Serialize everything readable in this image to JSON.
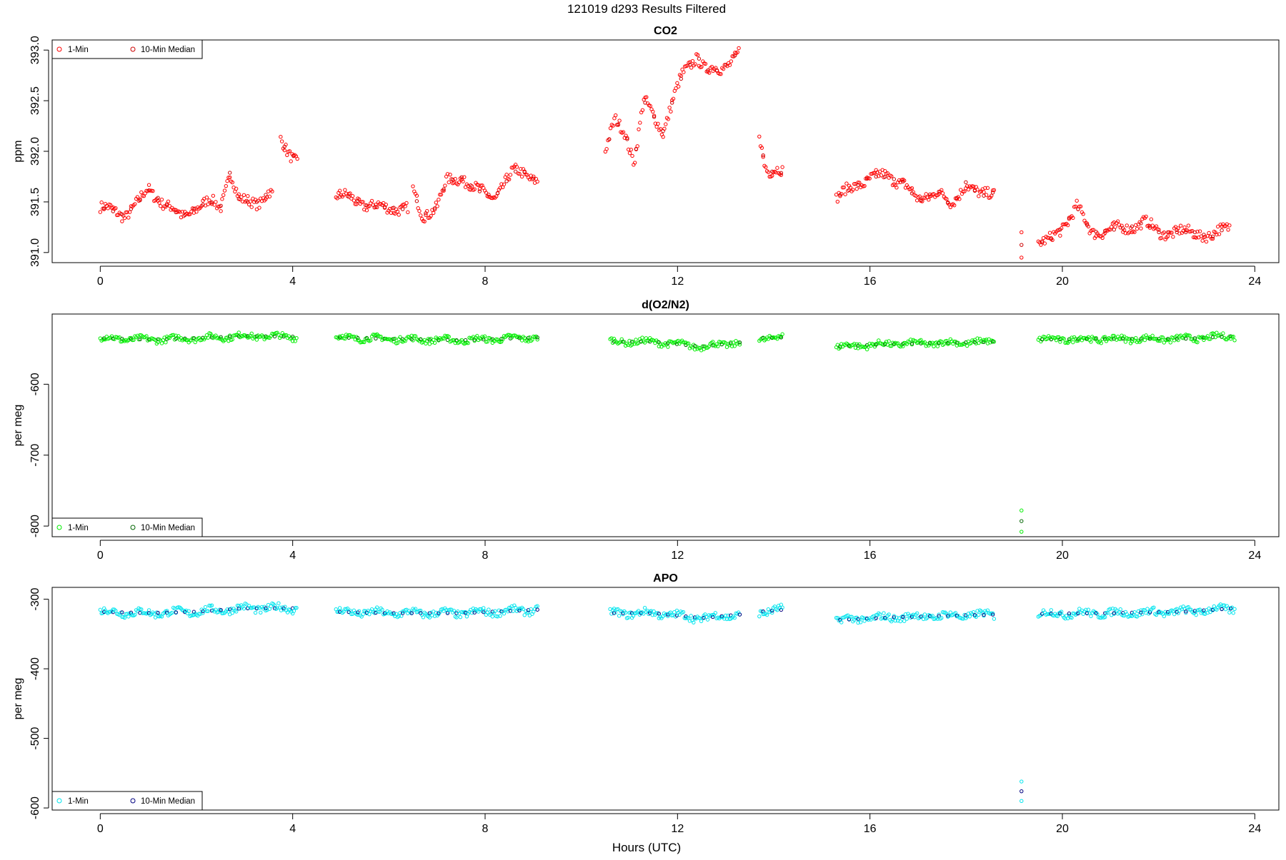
{
  "page": {
    "title": "121019   d293   Results Filtered",
    "xlabel": "Hours (UTC)"
  },
  "colors": {
    "co2_1min": "#ff0000",
    "co2_median": "#cc0000",
    "o2_1min": "#00ee00",
    "o2_median": "#006400",
    "apo_1min": "#00e5ee",
    "apo_median": "#000080",
    "axis": "#000000",
    "background": "#ffffff"
  },
  "chart_data": [
    {
      "id": "co2",
      "type": "scatter",
      "title": "CO2",
      "ylabel": "ppm",
      "xlim": [
        -1,
        24.5
      ],
      "ylim": [
        390.9,
        393.1
      ],
      "xticks": [
        0,
        4,
        8,
        12,
        16,
        20,
        24
      ],
      "yticks": [
        391.0,
        391.5,
        392.0,
        392.5,
        393.0
      ],
      "ytick_labels": [
        "391.0",
        "391.5",
        "392.0",
        "392.5",
        "393.0"
      ],
      "legend": {
        "position": "top-left",
        "entries": [
          "1-Min",
          "10-Min Median"
        ]
      },
      "segments": [
        {
          "t": [
            0.0,
            0.5,
            0.8,
            1.0,
            1.3,
            1.7,
            2.0,
            2.3,
            2.5,
            2.7,
            2.9,
            3.3,
            3.5,
            3.6
          ],
          "v": [
            391.45,
            391.37,
            391.5,
            391.62,
            391.5,
            391.35,
            391.45,
            391.5,
            391.45,
            391.8,
            391.5,
            391.5,
            391.6,
            391.55
          ]
        },
        {
          "t": [
            3.75,
            3.9,
            4.1
          ],
          "v": [
            392.1,
            392.0,
            391.92
          ]
        },
        {
          "t": [
            4.9,
            5.2,
            5.6,
            6.0,
            6.4
          ],
          "v": [
            391.55,
            391.55,
            391.45,
            391.45,
            391.42
          ]
        },
        {
          "t": [
            6.5,
            6.7,
            7.0,
            7.2,
            7.5,
            7.8,
            8.2,
            8.6,
            8.8,
            9.1
          ],
          "v": [
            391.6,
            391.37,
            391.45,
            391.7,
            391.75,
            391.62,
            391.55,
            391.8,
            391.8,
            391.7
          ]
        },
        {
          "t": [
            10.5,
            10.7,
            10.9,
            11.1,
            11.3,
            11.5,
            11.7,
            11.9,
            12.1,
            12.4,
            12.6,
            12.9,
            13.1,
            13.3
          ],
          "v": [
            392.0,
            392.3,
            392.2,
            391.9,
            392.5,
            392.35,
            392.2,
            392.5,
            392.75,
            392.95,
            392.8,
            392.8,
            392.9,
            393.0
          ]
        },
        {
          "t": [
            13.7,
            13.8,
            13.9,
            14.05,
            14.2
          ],
          "v": [
            392.2,
            391.9,
            391.8,
            391.8,
            391.78
          ]
        },
        {
          "t": [
            15.3,
            15.7,
            16.0,
            16.3,
            16.7,
            17.0,
            17.4,
            17.7,
            18.0,
            18.3,
            18.6
          ],
          "v": [
            391.55,
            391.65,
            391.75,
            391.75,
            391.7,
            391.5,
            391.62,
            391.45,
            391.7,
            391.55,
            391.6
          ]
        },
        {
          "t": [
            19.15,
            19.15
          ],
          "v": [
            390.95,
            391.2
          ]
        },
        {
          "t": [
            19.5,
            19.7,
            20.0,
            20.3,
            20.6,
            21.0,
            21.4,
            21.7,
            22.0,
            22.4,
            22.8,
            23.1,
            23.5
          ],
          "v": [
            391.1,
            391.1,
            391.25,
            391.45,
            391.2,
            391.22,
            391.25,
            391.3,
            391.2,
            391.2,
            391.2,
            391.15,
            391.28
          ]
        }
      ],
      "noise": 0.05
    },
    {
      "id": "o2",
      "type": "scatter",
      "title": "d(O2/N2)",
      "ylabel": "per meg",
      "xlim": [
        -1,
        24.5
      ],
      "ylim": [
        -815,
        -501
      ],
      "xticks": [
        0,
        4,
        8,
        12,
        16,
        20,
        24
      ],
      "yticks": [
        -800,
        -700,
        -600
      ],
      "ytick_labels": [
        "-800",
        "-700",
        "-600"
      ],
      "legend": {
        "position": "bottom-left",
        "entries": [
          "1-Min",
          "10-Min Median"
        ]
      },
      "segments": [
        {
          "t": [
            0.0,
            1.0,
            2.0,
            3.0,
            4.1
          ],
          "v": [
            -535,
            -537,
            -535,
            -532,
            -533
          ]
        },
        {
          "t": [
            4.9,
            6.0,
            7.5,
            9.1
          ],
          "v": [
            -534,
            -536,
            -538,
            -534
          ]
        },
        {
          "t": [
            10.6,
            11.5,
            12.5,
            13.3
          ],
          "v": [
            -540,
            -540,
            -547,
            -541
          ]
        },
        {
          "t": [
            13.7,
            14.2
          ],
          "v": [
            -535,
            -534
          ]
        },
        {
          "t": [
            15.3,
            16.5,
            17.5,
            18.6
          ],
          "v": [
            -547,
            -543,
            -542,
            -540
          ]
        },
        {
          "t": [
            19.15,
            19.15
          ],
          "v": [
            -808,
            -778
          ]
        },
        {
          "t": [
            19.5,
            21.0,
            22.5,
            23.6
          ],
          "v": [
            -537,
            -536,
            -536,
            -532
          ]
        }
      ],
      "noise": 4
    },
    {
      "id": "apo",
      "type": "scatter",
      "title": "APO",
      "ylabel": "per meg",
      "xlim": [
        -1,
        24.5
      ],
      "ylim": [
        -603,
        -283
      ],
      "xticks": [
        0,
        4,
        8,
        12,
        16,
        20,
        24
      ],
      "yticks": [
        -600,
        -500,
        -400,
        -300
      ],
      "ytick_labels": [
        "-600",
        "-500",
        "-400",
        "-300"
      ],
      "legend": {
        "position": "bottom-left",
        "entries": [
          "1-Min",
          "10-Min Median"
        ]
      },
      "segments": [
        {
          "t": [
            0.0,
            1.0,
            2.0,
            3.0,
            4.1
          ],
          "v": [
            -318,
            -320,
            -318,
            -313,
            -313
          ]
        },
        {
          "t": [
            4.9,
            6.0,
            7.5,
            9.1
          ],
          "v": [
            -318,
            -320,
            -320,
            -315
          ]
        },
        {
          "t": [
            10.6,
            11.5,
            12.5,
            13.3
          ],
          "v": [
            -320,
            -320,
            -327,
            -322
          ]
        },
        {
          "t": [
            13.7,
            14.2
          ],
          "v": [
            -318,
            -315
          ]
        },
        {
          "t": [
            15.3,
            16.5,
            17.5,
            18.6
          ],
          "v": [
            -330,
            -326,
            -324,
            -322
          ]
        },
        {
          "t": [
            19.15,
            19.15
          ],
          "v": [
            -590,
            -562
          ]
        },
        {
          "t": [
            19.5,
            21.0,
            22.5,
            23.6
          ],
          "v": [
            -321,
            -320,
            -318,
            -313
          ]
        }
      ],
      "noise": 5
    }
  ]
}
